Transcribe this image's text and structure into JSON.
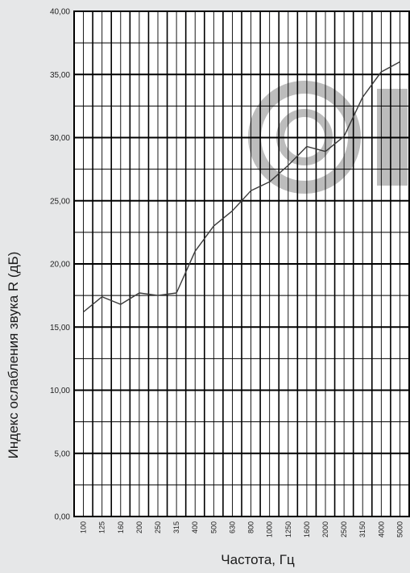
{
  "chart_data": {
    "type": "line",
    "title": "",
    "xlabel": "Частота, Гц",
    "ylabel": "Индекс ослабления звука R (дБ)",
    "ylim": [
      0,
      40
    ],
    "yticks": [
      "0,00",
      "5,00",
      "10,00",
      "15,00",
      "20,00",
      "25,00",
      "30,00",
      "35,00",
      "40,00"
    ],
    "categories": [
      "100",
      "125",
      "160",
      "200",
      "250",
      "315",
      "400",
      "500",
      "630",
      "800",
      "1000",
      "1250",
      "1600",
      "2000",
      "2500",
      "3150",
      "4000",
      "5000"
    ],
    "series": [
      {
        "values": [
          16.2,
          17.4,
          16.8,
          17.7,
          17.5,
          17.7,
          21.0,
          23.0,
          24.2,
          25.8,
          26.5,
          27.8,
          29.3,
          28.9,
          30.1,
          33.2,
          35.2,
          36.0
        ]
      }
    ],
    "grid": true,
    "legend": "none"
  },
  "watermark": "ОК",
  "colors": {
    "background": "#e6e7e8",
    "plot": "#ffffff",
    "grid": "#000000",
    "line": "#3a3a3a",
    "watermark": "#bcbcbc"
  }
}
